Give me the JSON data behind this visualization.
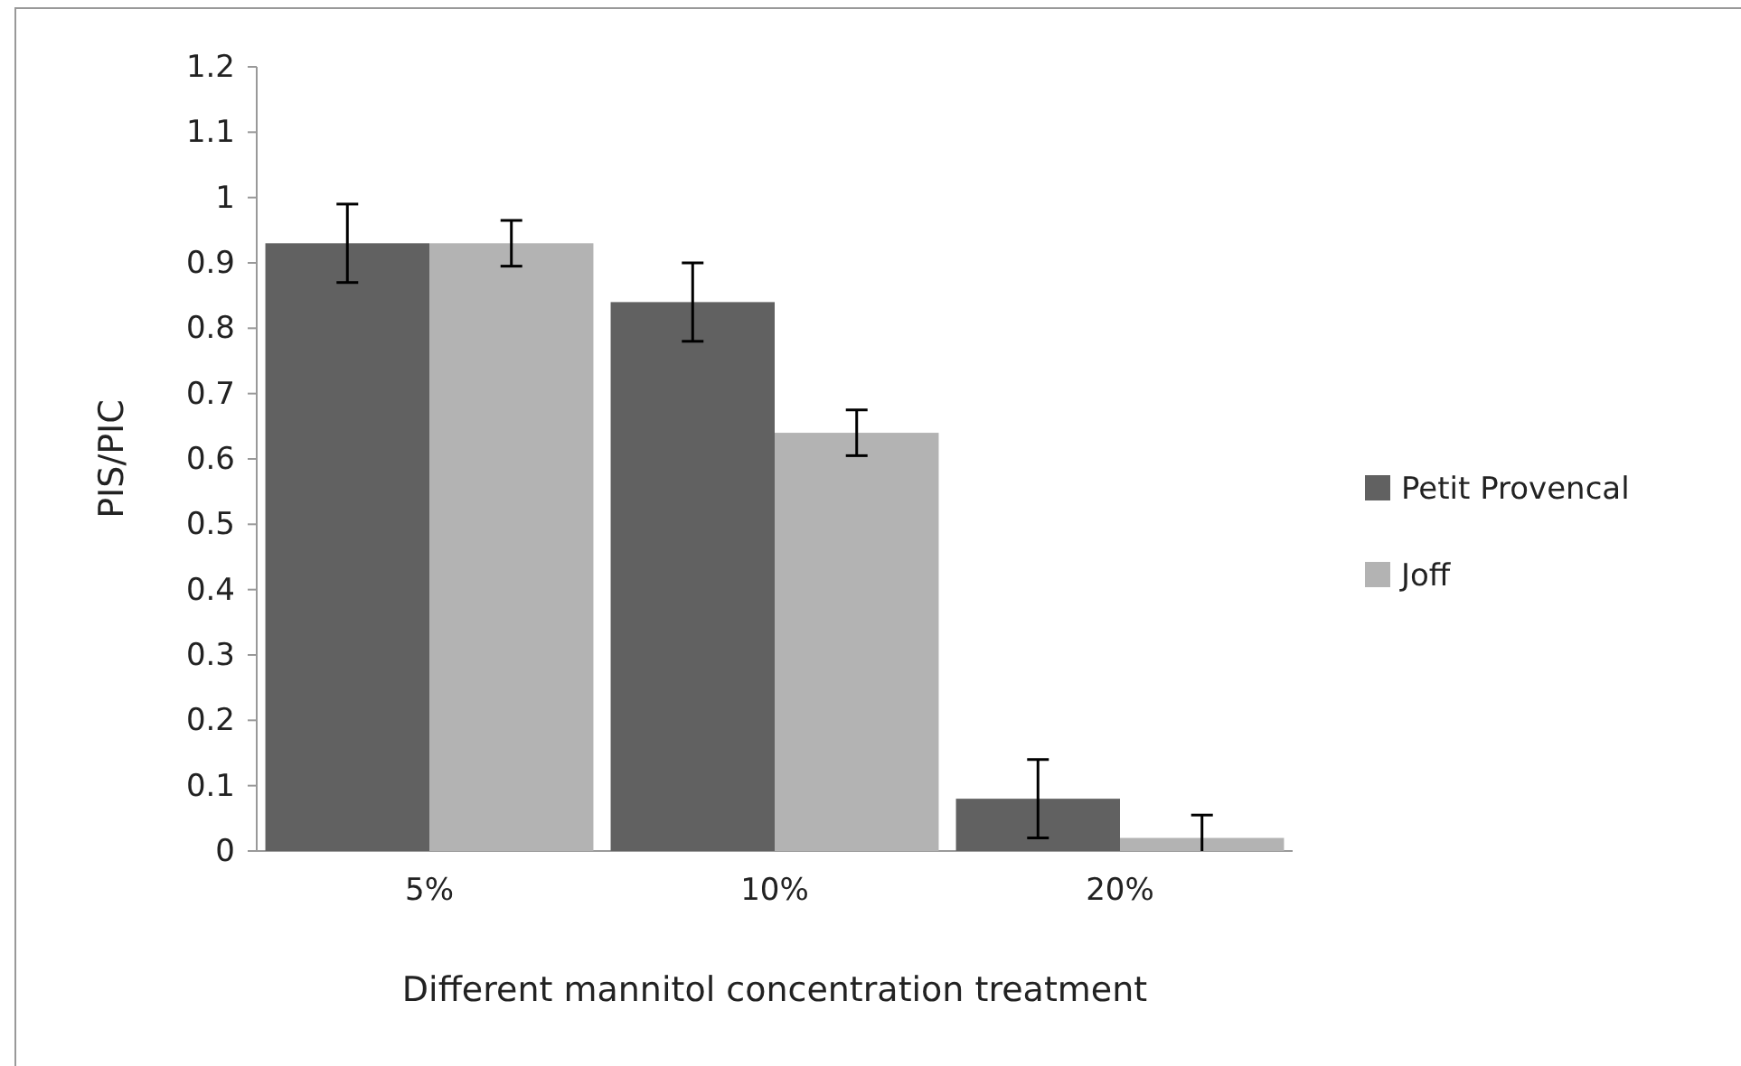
{
  "chart_data": {
    "type": "bar",
    "xlabel": "Different mannitol concentration treatment",
    "ylabel": "PIS/PIC",
    "categories": [
      "5%",
      "10%",
      "20%"
    ],
    "series": [
      {
        "name": "Petit Provencal",
        "color": "#616161",
        "values": [
          0.93,
          0.84,
          0.08
        ],
        "errors": [
          [
            0.87,
            0.99
          ],
          [
            0.78,
            0.9
          ],
          [
            0.02,
            0.14
          ]
        ]
      },
      {
        "name": "Joff",
        "color": "#b3b3b3",
        "values": [
          0.93,
          0.64,
          0.02
        ],
        "errors": [
          [
            0.895,
            0.965
          ],
          [
            0.605,
            0.675
          ],
          [
            0,
            0.055
          ]
        ]
      }
    ],
    "ylim": [
      0,
      1.2
    ],
    "yticks": [
      0,
      0.1,
      0.2,
      0.3,
      0.4,
      0.5,
      0.6,
      0.7,
      0.8,
      0.9,
      1,
      {
        "value": 1.1,
        "label": "1.1"
      },
      1.2
    ],
    "grid": false,
    "legend": "right"
  }
}
